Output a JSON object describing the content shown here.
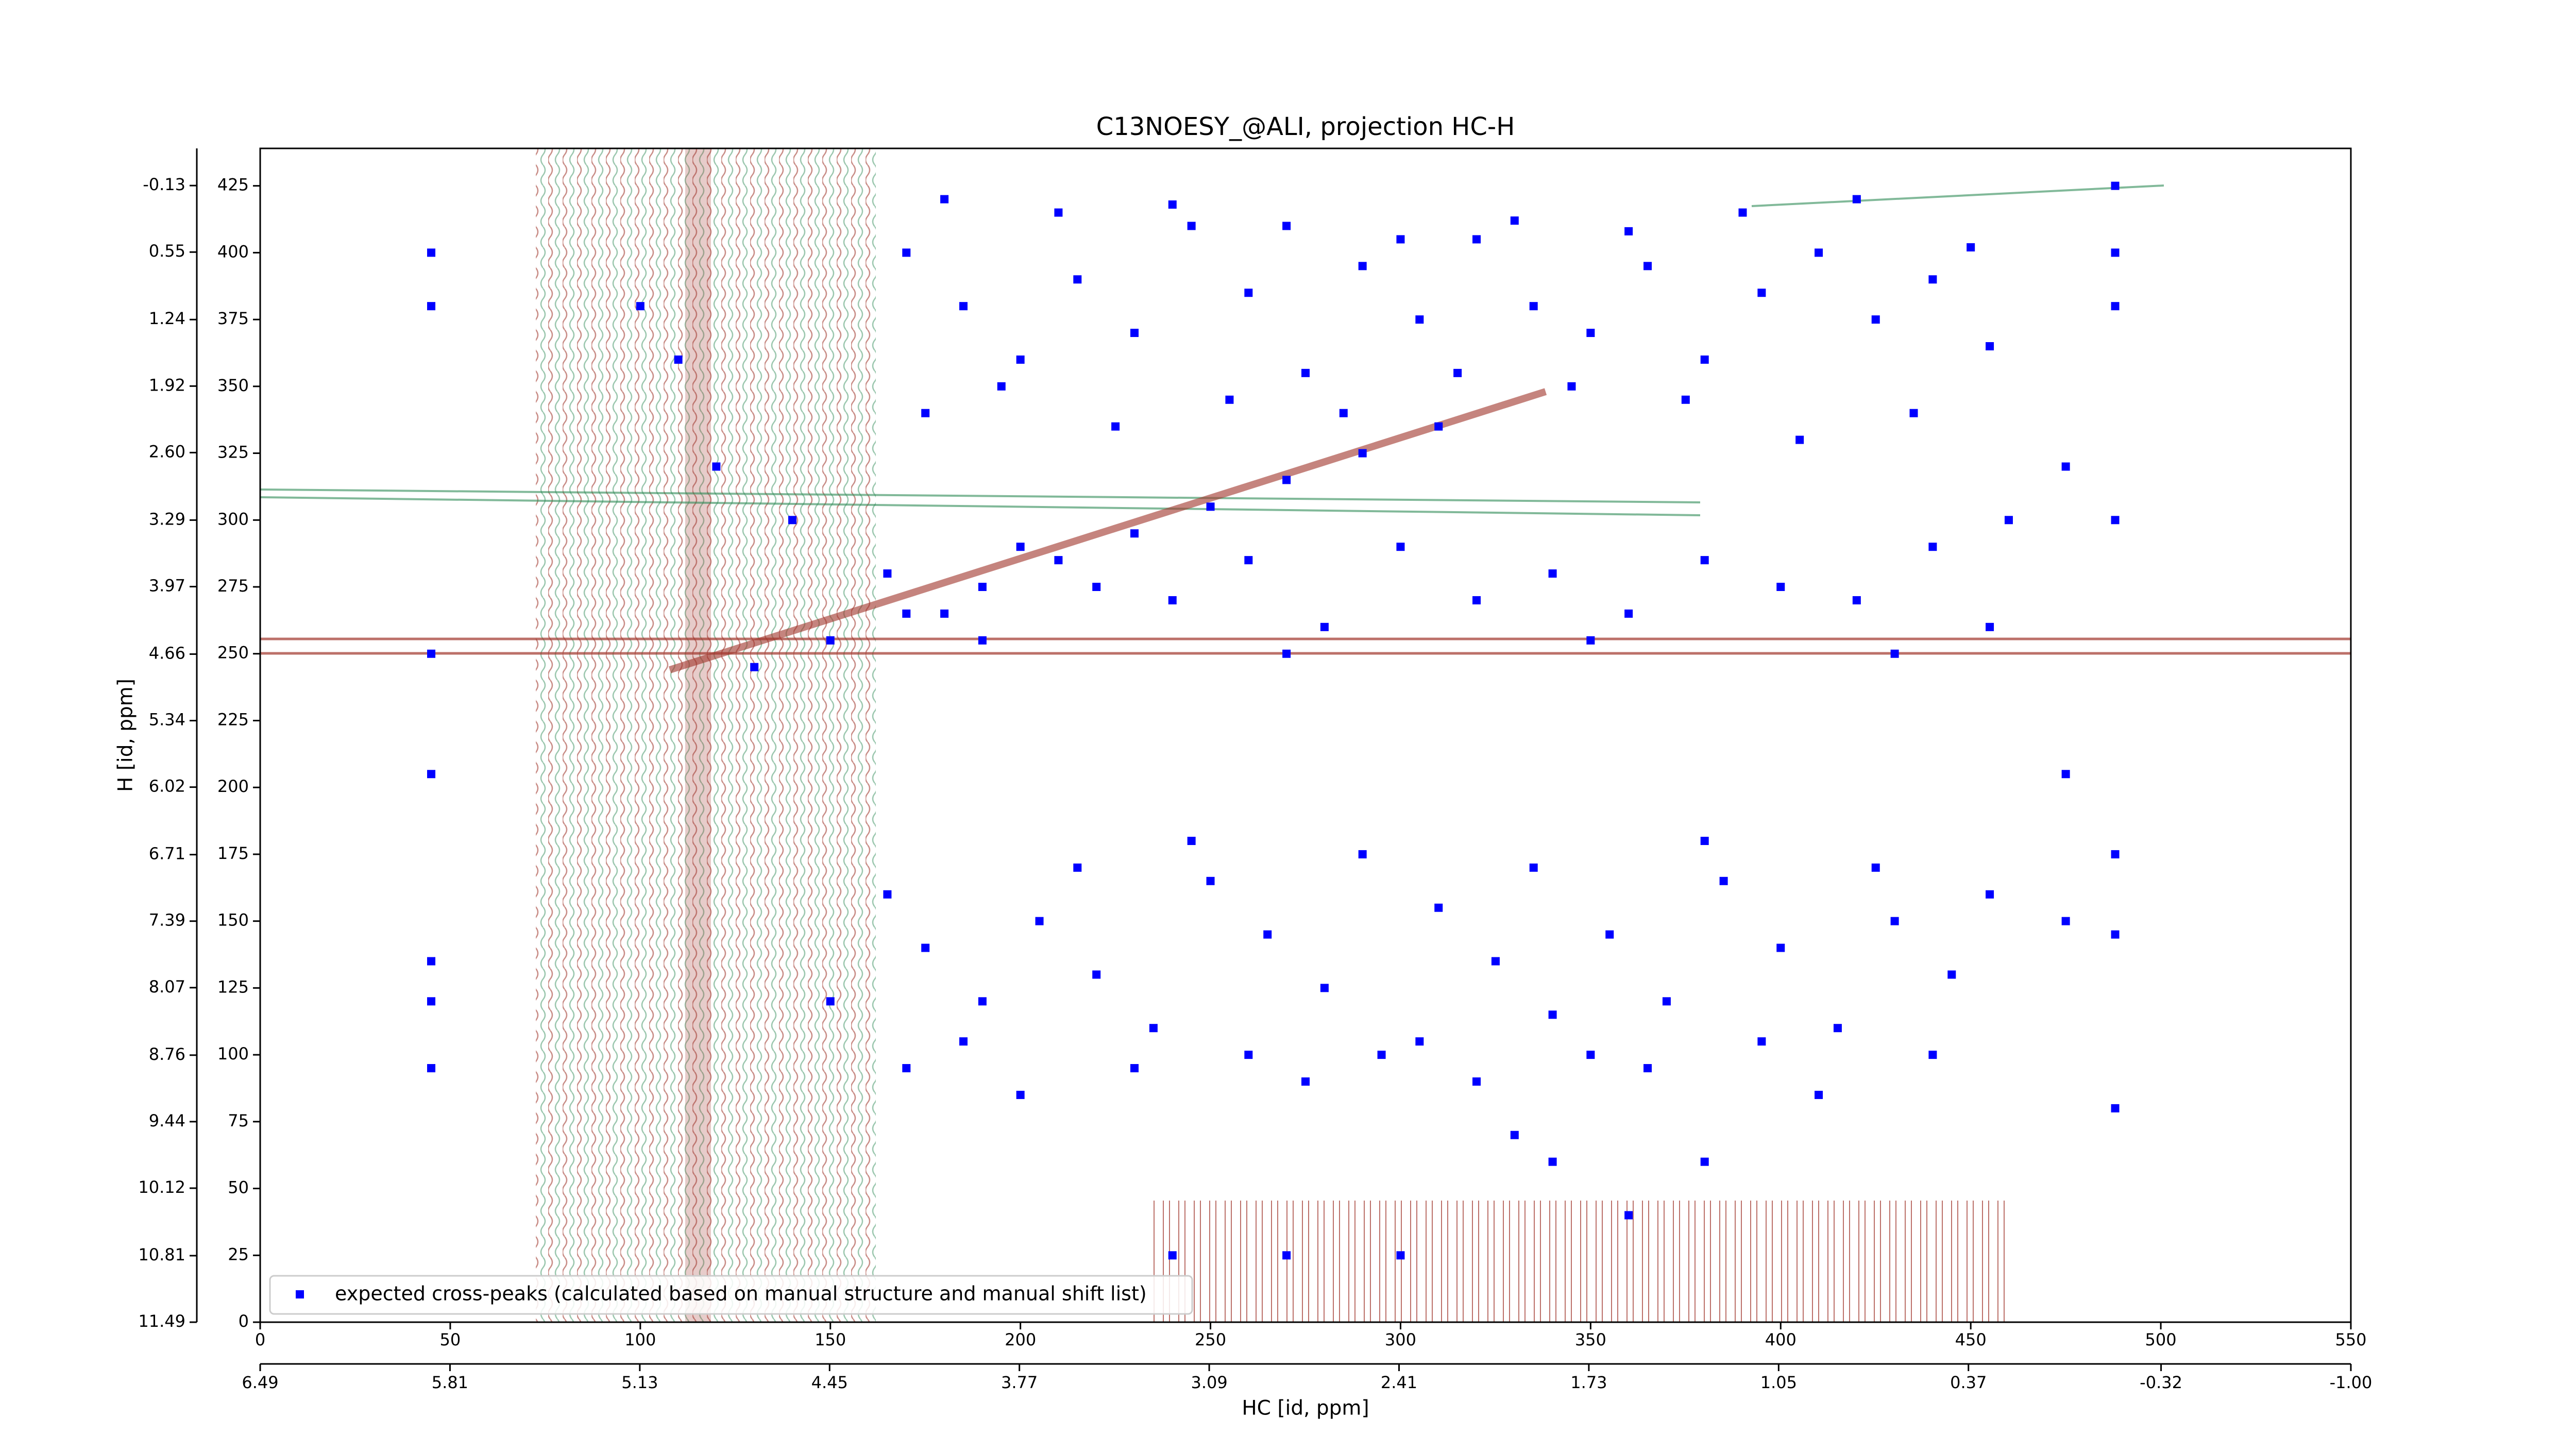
{
  "chart_data": {
    "type": "scatter",
    "title": "C13NOESY_@ALI, projection HC-H",
    "x_label": "HC [id, ppm]",
    "y_label": "H [id, ppm]",
    "xlim": [
      0,
      550
    ],
    "xticks": [
      0,
      50,
      100,
      150,
      200,
      250,
      300,
      350,
      400,
      450,
      500,
      550
    ],
    "ylim": [
      0,
      439
    ],
    "yticks": [
      0,
      25,
      50,
      75,
      100,
      125,
      150,
      175,
      200,
      225,
      250,
      275,
      300,
      325,
      350,
      375,
      400,
      425
    ],
    "x2lim": [
      6.49,
      -1.0
    ],
    "x2ticks": [
      6.49,
      5.81,
      5.13,
      4.45,
      3.77,
      3.09,
      2.41,
      1.73,
      1.05,
      0.37,
      -0.32,
      {
        "value": -1,
        "label": "-1.00"
      }
    ],
    "y2lim": [
      11.49,
      -0.51
    ],
    "y2ticks": [
      11.49,
      10.81,
      10.12,
      9.44,
      8.76,
      8.07,
      7.39,
      6.71,
      6.02,
      5.34,
      4.66,
      3.97,
      3.29,
      {
        "value": 2.6,
        "label": "2.60"
      },
      1.92,
      1.24,
      0.55,
      -0.13
    ],
    "legend": "lower left",
    "series": [
      {
        "name": "expected cross-peaks (calculated based on manual structure and manual shift list)",
        "color": "#0000ff",
        "x": [
          130,
          150,
          170,
          190,
          210,
          230,
          250,
          270,
          290,
          310,
          170,
          185,
          200,
          215,
          230,
          245,
          260,
          275,
          290,
          305,
          320,
          335,
          350,
          365,
          380,
          395,
          410,
          425,
          440,
          455,
          175,
          195,
          225,
          255,
          285,
          315,
          345,
          375,
          405,
          435,
          180,
          210,
          240,
          270,
          300,
          330,
          360,
          390,
          420,
          450,
          165,
          180,
          200,
          220,
          240,
          260,
          280,
          300,
          320,
          340,
          360,
          380,
          400,
          420,
          440,
          455,
          190,
          270,
          350,
          430,
          165,
          175,
          190,
          205,
          220,
          235,
          250,
          265,
          280,
          295,
          310,
          325,
          340,
          355,
          370,
          385,
          400,
          415,
          430,
          445,
          170,
          185,
          200,
          215,
          230,
          245,
          260,
          275,
          290,
          305,
          320,
          335,
          350,
          365,
          380,
          395,
          410,
          425,
          440,
          455,
          45,
          45,
          45,
          45,
          45,
          45,
          45,
          488,
          488,
          488,
          488,
          488,
          488,
          488,
          475,
          475,
          475,
          240,
          270,
          300,
          100,
          110,
          120,
          140,
          150,
          330,
          340,
          360,
          380,
          460
        ],
        "values": [
          245,
          255,
          265,
          275,
          285,
          295,
          305,
          315,
          325,
          335,
          400,
          380,
          360,
          390,
          370,
          410,
          385,
          355,
          395,
          375,
          405,
          380,
          370,
          395,
          360,
          385,
          400,
          375,
          390,
          365,
          340,
          350,
          335,
          345,
          340,
          355,
          350,
          345,
          330,
          340,
          420,
          415,
          418,
          410,
          405,
          412,
          408,
          415,
          420,
          402,
          280,
          265,
          290,
          275,
          270,
          285,
          260,
          290,
          270,
          280,
          265,
          285,
          275,
          270,
          290,
          260,
          255,
          250,
          255,
          250,
          160,
          140,
          120,
          150,
          130,
          110,
          165,
          145,
          125,
          100,
          155,
          135,
          115,
          145,
          120,
          165,
          140,
          110,
          150,
          130,
          95,
          105,
          85,
          170,
          95,
          180,
          100,
          90,
          175,
          105,
          90,
          170,
          100,
          95,
          180,
          105,
          85,
          170,
          100,
          160,
          400,
          380,
          250,
          205,
          135,
          120,
          95,
          425,
          400,
          380,
          300,
          175,
          145,
          80,
          320,
          205,
          150,
          25,
          25,
          25,
          380,
          360,
          320,
          300,
          120,
          70,
          60,
          40,
          60,
          300
        ]
      }
    ]
  }
}
